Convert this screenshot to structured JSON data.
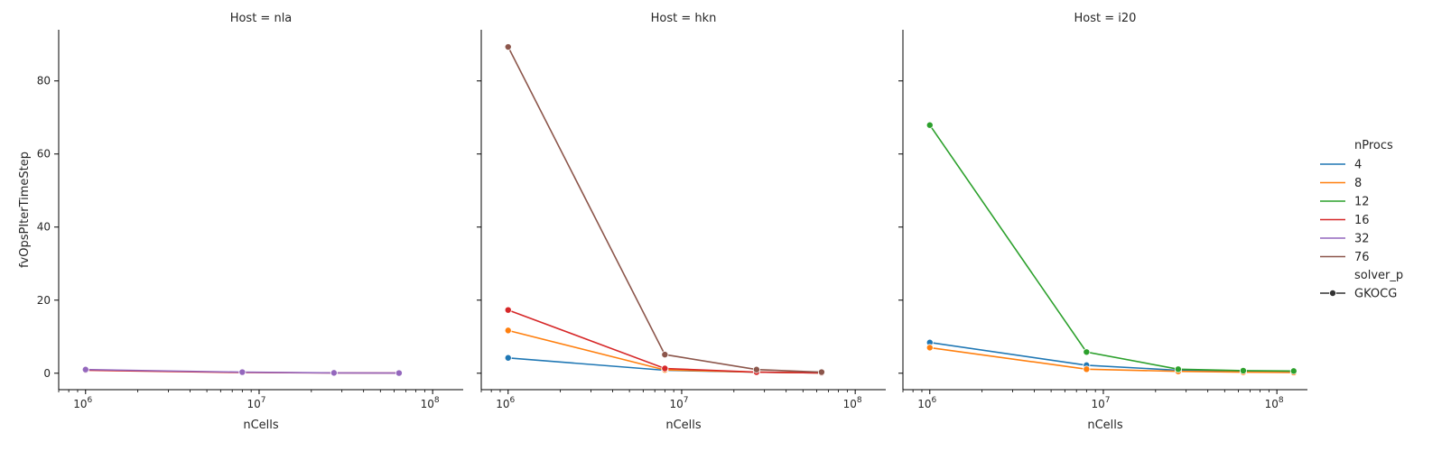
{
  "chart_data": {
    "type": "line",
    "xlabel": "nCells",
    "ylabel": "fvOpsPIterTimeStep",
    "xscale": "log",
    "xlim": [
      700000,
      150000000
    ],
    "ylim": [
      -4.5,
      94
    ],
    "xticks": [
      {
        "value": 1000000,
        "base": "10",
        "exp": "6"
      },
      {
        "value": 10000000,
        "base": "10",
        "exp": "7"
      },
      {
        "value": 100000000,
        "base": "10",
        "exp": "8"
      }
    ],
    "yticks": [
      0,
      20,
      40,
      60,
      80
    ],
    "legend": {
      "position": "right",
      "hue_title": "nProcs",
      "style_title": "solver_p",
      "style_entries": [
        "GKOCG"
      ],
      "entries": [
        {
          "label": "4",
          "color": "#1f77b4"
        },
        {
          "label": "8",
          "color": "#ff7f0e"
        },
        {
          "label": "12",
          "color": "#2ca02c"
        },
        {
          "label": "16",
          "color": "#d62728"
        },
        {
          "label": "32",
          "color": "#9467bd"
        },
        {
          "label": "76",
          "color": "#8c564b"
        }
      ]
    },
    "panels": [
      {
        "title": "Host = nla",
        "series": [
          {
            "name": "16",
            "color": "#d62728",
            "points": [
              [
                1000000,
                0.8
              ],
              [
                8000000,
                0.2
              ],
              [
                27000000,
                0.1
              ],
              [
                64000000,
                0.05
              ]
            ]
          },
          {
            "name": "32",
            "color": "#9467bd",
            "points": [
              [
                1000000,
                1.0
              ],
              [
                8000000,
                0.3
              ],
              [
                27000000,
                0.1
              ],
              [
                64000000,
                0.05
              ]
            ]
          }
        ]
      },
      {
        "title": "Host = hkn",
        "series": [
          {
            "name": "4",
            "color": "#1f77b4",
            "points": [
              [
                1000000,
                4.2
              ],
              [
                8000000,
                0.8
              ],
              [
                27000000,
                0.3
              ],
              [
                64000000,
                0.1
              ]
            ]
          },
          {
            "name": "8",
            "color": "#ff7f0e",
            "points": [
              [
                1000000,
                11.7
              ],
              [
                8000000,
                0.9
              ],
              [
                27000000,
                0.3
              ],
              [
                64000000,
                0.1
              ]
            ]
          },
          {
            "name": "16",
            "color": "#d62728",
            "points": [
              [
                1000000,
                17.3
              ],
              [
                8000000,
                1.3
              ],
              [
                27000000,
                0.3
              ],
              [
                64000000,
                0.1
              ]
            ]
          },
          {
            "name": "76",
            "color": "#8c564b",
            "points": [
              [
                1000000,
                89.3
              ],
              [
                8000000,
                5.1
              ],
              [
                27000000,
                1.0
              ],
              [
                64000000,
                0.3
              ]
            ]
          }
        ]
      },
      {
        "title": "Host = i20",
        "series": [
          {
            "name": "4",
            "color": "#1f77b4",
            "points": [
              [
                1000000,
                8.4
              ],
              [
                8000000,
                2.2
              ],
              [
                27000000,
                0.8
              ],
              [
                64000000,
                0.4
              ],
              [
                125000000,
                0.3
              ]
            ]
          },
          {
            "name": "8",
            "color": "#ff7f0e",
            "points": [
              [
                1000000,
                7.0
              ],
              [
                8000000,
                1.1
              ],
              [
                27000000,
                0.5
              ],
              [
                64000000,
                0.3
              ],
              [
                125000000,
                0.2
              ]
            ]
          },
          {
            "name": "12",
            "color": "#2ca02c",
            "points": [
              [
                1000000,
                67.9
              ],
              [
                8000000,
                5.8
              ],
              [
                27000000,
                1.1
              ],
              [
                64000000,
                0.7
              ],
              [
                125000000,
                0.6
              ]
            ]
          }
        ]
      }
    ]
  }
}
